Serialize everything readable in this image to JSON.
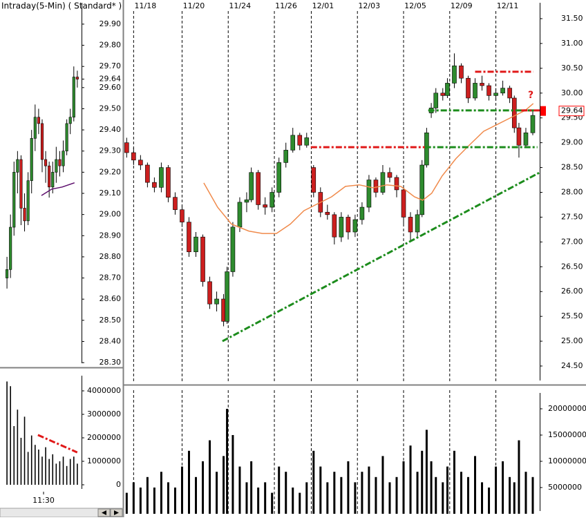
{
  "chart_data": [
    {
      "type": "candlestick",
      "title": "Intraday(5-Min) ( Standard* )",
      "color_up": "#2e8b2e",
      "color_down": "#cc1f1f",
      "x": [
        1,
        2,
        3,
        4,
        5,
        6,
        7,
        8,
        9,
        10,
        11,
        12,
        13,
        14,
        15,
        16,
        17,
        18,
        19,
        20,
        21
      ],
      "open": [
        28.7,
        28.74,
        28.94,
        29.2,
        29.26,
        29.03,
        28.97,
        29.16,
        29.36,
        29.46,
        29.43,
        29.26,
        29.23,
        29.13,
        29.2,
        29.26,
        29.23,
        29.3,
        29.43,
        29.46,
        29.65
      ],
      "high": [
        28.8,
        29.0,
        29.25,
        29.3,
        29.28,
        29.1,
        29.2,
        29.4,
        29.52,
        29.5,
        29.45,
        29.3,
        29.25,
        29.25,
        29.32,
        29.3,
        29.35,
        29.45,
        29.5,
        29.7,
        29.68
      ],
      "low": [
        28.65,
        28.7,
        28.9,
        29.1,
        28.95,
        28.92,
        28.95,
        29.1,
        29.3,
        29.38,
        29.2,
        29.15,
        29.08,
        29.1,
        29.15,
        29.18,
        29.2,
        29.28,
        29.38,
        29.44,
        29.6
      ],
      "close": [
        28.74,
        28.94,
        29.2,
        29.26,
        29.03,
        28.97,
        29.16,
        29.36,
        29.46,
        29.43,
        29.26,
        29.23,
        29.13,
        29.2,
        29.26,
        29.23,
        29.3,
        29.43,
        29.46,
        29.65,
        29.64
      ],
      "ma": {
        "color": "#5a0a6a",
        "x": [
          10.8,
          13.7,
          16.7,
          20.2
        ],
        "values": [
          29.09,
          29.12,
          29.13,
          29.15
        ]
      },
      "xlim": [
        0,
        22.2
      ],
      "ylim": [
        28.284,
        30.014
      ],
      "yticks": [
        {
          "value": 28.3,
          "label": "28.30"
        },
        {
          "value": 28.4,
          "label": "28.40"
        },
        {
          "value": 28.5,
          "label": "28.50"
        },
        {
          "value": 28.6,
          "label": "28.60"
        },
        {
          "value": 28.7,
          "label": "28.70"
        },
        {
          "value": 28.8,
          "label": "28.80"
        },
        {
          "value": 28.9,
          "label": "28.90"
        },
        {
          "value": 29.0,
          "label": "29.00"
        },
        {
          "value": 29.1,
          "label": "29.10"
        },
        {
          "value": 29.2,
          "label": "29.20"
        },
        {
          "value": 29.3,
          "label": "29.30"
        },
        {
          "value": 29.4,
          "label": "29.40"
        },
        {
          "value": 29.5,
          "label": "29.50"
        },
        {
          "value": 29.6,
          "label": "29.60"
        },
        29.64,
        {
          "value": 29.7,
          "label": "29.70"
        },
        {
          "value": 29.8,
          "label": "29.80"
        },
        {
          "value": 29.9,
          "label": "29.90"
        }
      ]
    },
    {
      "type": "bar",
      "color": "#000000",
      "x": [
        1,
        2,
        3,
        4,
        5,
        6,
        7,
        8,
        9,
        10,
        11,
        12,
        13,
        14,
        15,
        16,
        17,
        18,
        19,
        20,
        21
      ],
      "values": [
        4400000,
        4200000,
        2500000,
        3200000,
        2000000,
        2900000,
        1400000,
        2100000,
        1700000,
        1500000,
        1200000,
        1600000,
        1100000,
        1300000,
        900000,
        1000000,
        1200000,
        800000,
        1100000,
        1200000,
        900000
      ],
      "lines": [
        {
          "color": "#e01818",
          "x": [
            9.8,
            20.98
          ],
          "values": [
            2120000,
            1380000
          ]
        }
      ],
      "xlim": [
        0,
        22.2
      ],
      "ylim": [
        -294000,
        4765000
      ],
      "xticks": [
        {
          "value": 11.4,
          "label": "11:30"
        }
      ],
      "yticks": [
        0,
        1000000,
        2000000,
        3000000,
        4000000
      ]
    },
    {
      "type": "candlestick",
      "color_up": "#2e8b2e",
      "color_down": "#cc1f1f",
      "x": [
        0.1,
        0.4,
        0.7,
        1.0,
        1.3,
        1.6,
        1.9,
        2.2,
        2.5,
        2.8,
        3.1,
        3.4,
        3.7,
        4.0,
        4.3,
        4.45,
        4.7,
        5.0,
        5.3,
        5.5,
        5.8,
        6.1,
        6.4,
        6.7,
        7.0,
        7.3,
        7.6,
        7.9,
        8.2,
        8.5,
        8.8,
        9.1,
        9.4,
        9.7,
        10.0,
        10.3,
        10.6,
        10.9,
        11.2,
        11.5,
        11.8,
        12.1,
        12.4,
        12.7,
        12.9,
        13.1,
        13.3,
        13.5,
        13.8,
        14.0,
        14.3,
        14.6,
        14.9,
        15.2,
        15.5,
        15.8,
        16.1,
        16.4,
        16.7,
        16.9,
        17.1,
        17.4,
        17.7
      ],
      "open": [
        29.0,
        28.8,
        28.65,
        28.55,
        28.2,
        28.1,
        28.5,
        27.9,
        27.65,
        27.4,
        26.8,
        27.1,
        26.2,
        25.75,
        25.85,
        25.4,
        26.4,
        27.3,
        27.8,
        27.85,
        28.4,
        27.75,
        27.7,
        28.0,
        28.6,
        28.85,
        29.15,
        28.95,
        28.5,
        28.0,
        27.6,
        27.55,
        27.1,
        27.5,
        27.2,
        27.45,
        27.7,
        28.25,
        28.0,
        28.4,
        28.3,
        28.05,
        27.5,
        27.2,
        27.55,
        28.55,
        29.6,
        29.7,
        30.0,
        29.95,
        30.2,
        30.55,
        30.3,
        29.9,
        30.2,
        30.15,
        29.95,
        30.0,
        30.1,
        29.9,
        29.3,
        28.95,
        29.2
      ],
      "high": [
        29.1,
        28.9,
        28.75,
        28.6,
        28.3,
        28.6,
        28.55,
        28.0,
        27.75,
        27.5,
        27.2,
        27.15,
        26.3,
        26.0,
        25.95,
        26.5,
        27.4,
        27.9,
        28.0,
        28.5,
        28.45,
        27.9,
        28.1,
        28.7,
        29.0,
        29.3,
        29.2,
        29.2,
        28.55,
        28.1,
        27.75,
        27.6,
        27.6,
        27.55,
        27.55,
        27.8,
        28.35,
        28.3,
        28.55,
        28.5,
        28.35,
        28.1,
        27.6,
        27.65,
        28.65,
        29.3,
        29.8,
        30.1,
        30.1,
        30.3,
        30.8,
        30.6,
        30.35,
        30.3,
        30.35,
        30.2,
        30.1,
        30.25,
        30.15,
        29.95,
        29.4,
        29.3,
        29.65
      ],
      "low": [
        28.7,
        28.55,
        28.45,
        28.1,
        28.0,
        28.0,
        27.8,
        27.55,
        27.3,
        26.7,
        26.7,
        26.1,
        25.65,
        25.6,
        25.3,
        25.35,
        26.3,
        27.2,
        27.6,
        27.8,
        27.65,
        27.55,
        27.6,
        27.9,
        28.5,
        28.8,
        28.85,
        28.9,
        27.9,
        27.5,
        27.45,
        26.95,
        27.0,
        27.05,
        27.1,
        27.35,
        27.6,
        27.9,
        27.95,
        28.2,
        27.9,
        27.35,
        27.0,
        27.1,
        27.5,
        28.5,
        29.5,
        29.6,
        29.85,
        29.9,
        30.1,
        30.2,
        29.8,
        29.85,
        30.05,
        29.85,
        29.85,
        29.95,
        29.8,
        29.2,
        28.7,
        28.9,
        29.15
      ],
      "close": [
        28.8,
        28.65,
        28.55,
        28.2,
        28.1,
        28.5,
        27.9,
        27.65,
        27.4,
        26.8,
        27.1,
        26.2,
        25.75,
        25.85,
        25.4,
        26.4,
        27.3,
        27.8,
        27.85,
        28.4,
        27.75,
        27.7,
        28.0,
        28.6,
        28.85,
        29.15,
        28.95,
        29.1,
        28.0,
        27.6,
        27.55,
        27.1,
        27.5,
        27.2,
        27.45,
        27.7,
        28.25,
        28.0,
        28.4,
        28.3,
        28.05,
        27.5,
        27.2,
        27.55,
        28.55,
        29.2,
        29.7,
        30.0,
        29.95,
        30.2,
        30.55,
        30.3,
        29.9,
        30.2,
        30.15,
        29.95,
        30.0,
        30.1,
        29.9,
        29.3,
        28.95,
        29.2,
        29.55
      ],
      "ma": {
        "color": "#f08a4b",
        "x": [
          3.44,
          4.04,
          4.64,
          5.39,
          5.99,
          6.59,
          7.19,
          7.78,
          8.38,
          8.98,
          9.58,
          10.18,
          10.78,
          11.38,
          11.98,
          12.57,
          12.93,
          13.32,
          13.77,
          14.37,
          14.97,
          15.57,
          16.17,
          16.77,
          17.37,
          17.72
        ],
        "values": [
          28.19,
          27.7,
          27.36,
          27.22,
          27.17,
          27.17,
          27.36,
          27.63,
          27.77,
          27.91,
          28.12,
          28.15,
          28.09,
          28.15,
          28.12,
          27.91,
          27.84,
          27.98,
          28.33,
          28.68,
          28.96,
          29.23,
          29.37,
          29.51,
          29.65,
          29.79
        ]
      },
      "lines": [
        {
          "color": "#1c8c1c",
          "x": [
            4.25,
            18.0
          ],
          "values": [
            25.0,
            28.4
          ]
        },
        {
          "color": "#e01818",
          "x": [
            8.08,
            13.02
          ],
          "values": [
            28.91,
            28.91
          ]
        },
        {
          "color": "#1c8c1c",
          "x": [
            13.02,
            17.9
          ],
          "values": [
            28.91,
            28.91
          ]
        },
        {
          "color": "#1c8c1c",
          "x": [
            13.17,
            17.8
          ],
          "values": [
            29.65,
            29.65
          ]
        },
        {
          "color": "#e01818",
          "x": [
            17.2,
            18.0
          ],
          "values": [
            29.65,
            29.65
          ]
        },
        {
          "color": "#e01818",
          "x": [
            15.2,
            17.72
          ],
          "values": [
            30.43,
            30.43
          ]
        }
      ],
      "annotation": {
        "text": "?",
        "color": "#e01818"
      },
      "last_price": 29.64,
      "last_price_color": "#ff0000",
      "xlim": [
        0,
        18
      ],
      "ylim": [
        24.152,
        31.876
      ],
      "xticks": [
        {
          "value": 0.4,
          "label": "11/18"
        },
        {
          "value": 2.5,
          "label": "11/20"
        },
        {
          "value": 4.5,
          "label": "11/24"
        },
        {
          "value": 6.5,
          "label": "11/26"
        },
        {
          "value": 8.1,
          "label": "12/01"
        },
        {
          "value": 10.1,
          "label": "12/03"
        },
        {
          "value": 12.1,
          "label": "12/05"
        },
        {
          "value": 14.1,
          "label": "12/09"
        },
        {
          "value": 16.1,
          "label": "12/11"
        }
      ],
      "yticks": [
        {
          "value": 24.5,
          "label": "24.50"
        },
        {
          "value": 25.0,
          "label": "25.00"
        },
        {
          "value": 25.5,
          "label": "25.50"
        },
        {
          "value": 26.0,
          "label": "26.00"
        },
        {
          "value": 26.5,
          "label": "26.50"
        },
        {
          "value": 27.0,
          "label": "27.00"
        },
        {
          "value": 27.5,
          "label": "27.50"
        },
        {
          "value": 28.0,
          "label": "28.00"
        },
        {
          "value": 28.5,
          "label": "28.50"
        },
        {
          "value": 29.0,
          "label": "29.00"
        },
        {
          "value": 29.5,
          "label": "29.50"
        },
        {
          "value": 30.0,
          "label": "30.00"
        },
        {
          "value": 30.5,
          "label": "30.50"
        },
        {
          "value": 31.0,
          "label": "31.00"
        },
        {
          "value": 31.5,
          "label": "31.50"
        }
      ]
    },
    {
      "type": "bar",
      "color": "#000000",
      "x": [
        0.1,
        0.4,
        0.7,
        1.0,
        1.3,
        1.6,
        1.9,
        2.2,
        2.5,
        2.8,
        3.1,
        3.4,
        3.7,
        4.0,
        4.3,
        4.45,
        4.7,
        5.0,
        5.3,
        5.5,
        5.8,
        6.1,
        6.4,
        6.7,
        7.0,
        7.3,
        7.6,
        7.9,
        8.2,
        8.5,
        8.8,
        9.1,
        9.4,
        9.7,
        10.0,
        10.3,
        10.6,
        10.9,
        11.2,
        11.5,
        11.8,
        12.1,
        12.4,
        12.7,
        12.9,
        13.1,
        13.3,
        13.5,
        13.8,
        14.0,
        14.3,
        14.6,
        14.9,
        15.2,
        15.5,
        15.8,
        16.1,
        16.4,
        16.7,
        16.9,
        17.1,
        17.4,
        17.7
      ],
      "values": [
        4000000,
        6000000,
        5000000,
        7000000,
        5000000,
        8000000,
        6000000,
        5000000,
        9000000,
        12000000,
        7000000,
        10000000,
        14000000,
        8000000,
        11000000,
        20000000,
        15000000,
        9000000,
        6000000,
        10000000,
        5000000,
        6000000,
        4000000,
        9000000,
        8000000,
        5000000,
        4000000,
        6000000,
        12000000,
        9000000,
        6000000,
        8000000,
        7000000,
        10000000,
        6000000,
        8000000,
        9000000,
        7000000,
        11000000,
        6000000,
        7000000,
        10000000,
        13000000,
        8000000,
        12000000,
        16000000,
        10000000,
        7000000,
        6000000,
        9000000,
        12000000,
        8000000,
        7000000,
        11000000,
        6000000,
        5000000,
        9000000,
        10000000,
        7000000,
        6000000,
        14000000,
        8000000,
        7000000
      ],
      "xgrid": [
        0.4,
        2.5,
        4.5,
        6.5,
        8.1,
        10.1,
        12.1,
        14.1,
        16.1
      ],
      "xlim": [
        0,
        18
      ],
      "ylim": [
        0,
        23550000
      ],
      "yticks": [
        5000000,
        10000000,
        15000000,
        20000000
      ]
    }
  ]
}
